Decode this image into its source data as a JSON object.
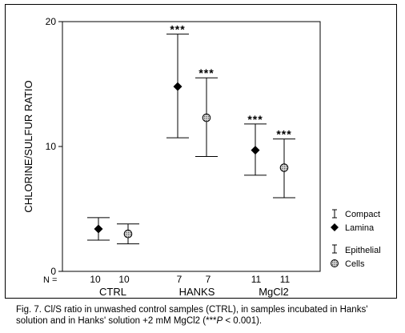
{
  "chart_data": {
    "type": "scatter",
    "ylabel": "CHLORINE/SULFUR RATIO",
    "ylim": [
      0,
      20
    ],
    "yticks": [
      0,
      10,
      20
    ],
    "n_row_label": "N =",
    "groups": [
      {
        "name": "CTRL",
        "n": [
          "10",
          "10"
        ]
      },
      {
        "name": "HANKS",
        "n": [
          "7",
          "7"
        ]
      },
      {
        "name": "MgCl2",
        "n": [
          "11",
          "11"
        ]
      }
    ],
    "series": [
      {
        "legend_icon_label": "Compact",
        "legend_label": "Lamina",
        "marker": "diamond",
        "points": [
          {
            "group": "CTRL",
            "mean": 3.4,
            "low": 2.5,
            "high": 4.3,
            "sig": ""
          },
          {
            "group": "HANKS",
            "mean": 14.8,
            "low": 10.7,
            "high": 19.0,
            "sig": "***"
          },
          {
            "group": "MgCl2",
            "mean": 9.7,
            "low": 7.7,
            "high": 11.8,
            "sig": "***"
          }
        ]
      },
      {
        "legend_icon_label": "Epithelial",
        "legend_label": "Cells",
        "marker": "hatched-circle",
        "points": [
          {
            "group": "CTRL",
            "mean": 3.0,
            "low": 2.2,
            "high": 3.8,
            "sig": ""
          },
          {
            "group": "HANKS",
            "mean": 12.3,
            "low": 9.2,
            "high": 15.5,
            "sig": "***"
          },
          {
            "group": "MgCl2",
            "mean": 8.3,
            "low": 5.9,
            "high": 10.6,
            "sig": "***"
          }
        ]
      }
    ]
  },
  "caption": {
    "lead": "Fig. 7.  Cl/S ratio in unwashed control samples (CTRL), in samples incubated in Hanks'",
    "line2_start": "solution and in Hanks' solution +2 mM MgCl2 (***",
    "line2_p": "P",
    "line2_end": " < 0.001)."
  }
}
